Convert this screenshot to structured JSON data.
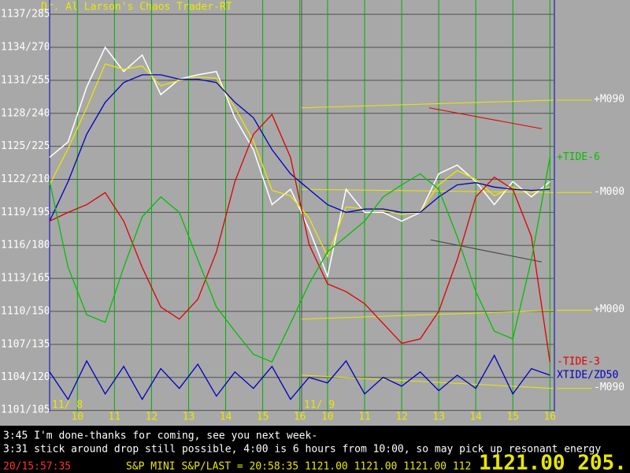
{
  "chart_data": {
    "type": "line",
    "title": "Dr. Al Larson's Chaos Trader-RT",
    "xlim": [
      0,
      13.6
    ],
    "ylim": [
      1100.9,
      1138.3
    ],
    "yticks": [
      {
        "value": 1101,
        "label": "1101/105"
      },
      {
        "value": 1104,
        "label": "1104/120"
      },
      {
        "value": 1107,
        "label": "1107/135"
      },
      {
        "value": 1110,
        "label": "1110/150"
      },
      {
        "value": 1113,
        "label": "1113/165"
      },
      {
        "value": 1116,
        "label": "1116/180"
      },
      {
        "value": 1119,
        "label": "1119/195"
      },
      {
        "value": 1122,
        "label": "1122/210"
      },
      {
        "value": 1125,
        "label": "1125/225"
      },
      {
        "value": 1128,
        "label": "1128/240"
      },
      {
        "value": 1131,
        "label": "1131/255"
      },
      {
        "value": 1134,
        "label": "1134/270"
      },
      {
        "value": 1137,
        "label": "1137/285"
      }
    ],
    "xticks": [
      {
        "value": 0.75,
        "label": "10"
      },
      {
        "value": 1.75,
        "label": "11"
      },
      {
        "value": 2.75,
        "label": "12"
      },
      {
        "value": 3.75,
        "label": "13"
      },
      {
        "value": 4.75,
        "label": "14"
      },
      {
        "value": 5.75,
        "label": "15"
      },
      {
        "value": 6.75,
        "label": "16"
      },
      {
        "value": 7.5,
        "label": "10"
      },
      {
        "value": 8.5,
        "label": "11"
      },
      {
        "value": 9.5,
        "label": "12"
      },
      {
        "value": 10.5,
        "label": "13"
      },
      {
        "value": 11.5,
        "label": "14"
      },
      {
        "value": 12.5,
        "label": "15"
      },
      {
        "value": 13.5,
        "label": "16"
      }
    ],
    "day_break": 6.8,
    "day_labels": [
      "11/ 8",
      "11/ 9"
    ],
    "x": [
      0,
      0.5,
      1,
      1.5,
      2,
      2.5,
      3,
      3.5,
      4,
      4.5,
      5,
      5.5,
      6,
      6.5,
      7,
      7.5,
      8,
      8.5,
      9,
      9.5,
      10,
      10.5,
      11,
      11.5,
      12,
      12.5,
      13,
      13.5
    ],
    "series": [
      {
        "color": "#ffffff",
        "values": [
          1124.0,
          1125.4,
          1130.4,
          1134.0,
          1131.8,
          1133.3,
          1129.7,
          1131.1,
          1131.5,
          1131.8,
          1127.6,
          1124.7,
          1119.7,
          1121.1,
          1117.5,
          1113.2,
          1121.1,
          1119.0,
          1119.0,
          1118.2,
          1119.0,
          1122.5,
          1123.3,
          1121.8,
          1119.7,
          1121.8,
          1120.4,
          1121.8
        ]
      },
      {
        "color": "#e8e800",
        "values": [
          1121.5,
          1124.8,
          1128.5,
          1132.5,
          1132.0,
          1132.3,
          1130.5,
          1131.0,
          1131.3,
          1131.2,
          1128.5,
          1125.5,
          1121.0,
          1120.5,
          1118.5,
          1115.0,
          1119.5,
          1119.3,
          1119.2,
          1118.8,
          1119.0,
          1121.5,
          1122.8,
          1122.0,
          1120.5,
          1121.3,
          1120.8,
          1121.3
        ]
      },
      {
        "color": "#0000c0",
        "values": [
          1118.2,
          1121.8,
          1126.1,
          1129.0,
          1130.8,
          1131.5,
          1131.5,
          1131.1,
          1131.1,
          1130.8,
          1129.0,
          1127.6,
          1124.7,
          1122.5,
          1121.1,
          1119.7,
          1119.0,
          1119.3,
          1119.3,
          1119.0,
          1119.0,
          1120.4,
          1121.5,
          1121.7,
          1121.3,
          1121.1,
          1121.0,
          1121.1
        ]
      },
      {
        "name": "-TIDE-3",
        "color": "#e00000",
        "values": [
          1118.2,
          1119.0,
          1119.7,
          1120.8,
          1118.2,
          1114.0,
          1110.4,
          1109.3,
          1111.1,
          1115.4,
          1121.8,
          1126.1,
          1127.9,
          1124.0,
          1116.1,
          1112.5,
          1111.8,
          1110.7,
          1108.9,
          1107.1,
          1107.5,
          1110.0,
          1114.7,
          1120.4,
          1122.2,
          1121.1,
          1116.8,
          1105.4
        ]
      },
      {
        "name": "+TIDE-6",
        "color": "#00c000",
        "values": [
          1121.8,
          1114.0,
          1109.7,
          1109.0,
          1114.0,
          1118.6,
          1120.4,
          1119.0,
          1114.7,
          1110.4,
          1108.2,
          1106.1,
          1105.4,
          1108.9,
          1112.5,
          1115.4,
          1116.8,
          1118.2,
          1120.4,
          1121.5,
          1122.5,
          1121.1,
          1116.8,
          1111.8,
          1108.2,
          1107.5,
          1114.7,
          1124.0
        ]
      },
      {
        "name": "XTIDE/ZD50",
        "color": "#0000c0",
        "values": [
          1104.5,
          1102.0,
          1105.5,
          1102.5,
          1105.0,
          1102.0,
          1104.8,
          1103.0,
          1105.2,
          1102.3,
          1104.5,
          1103.0,
          1105.0,
          1102.0,
          1104.0,
          1103.5,
          1105.5,
          1102.5,
          1104.0,
          1103.2,
          1104.5,
          1102.8,
          1104.2,
          1103.0,
          1106.0,
          1102.5,
          1104.8,
          1104.2
        ]
      }
    ],
    "levels": [
      {
        "name": "+M090",
        "color": "#e8e800",
        "x": [
          6.8,
          13.6
        ],
        "values": [
          1128.5,
          1129.2
        ]
      },
      {
        "name": "-M000",
        "color": "#e8e800",
        "x": [
          6.8,
          13.6
        ],
        "values": [
          1121.1,
          1120.8
        ]
      },
      {
        "name": "+M000",
        "color": "#e8e800",
        "x": [
          6.8,
          13.6
        ],
        "values": [
          1109.3,
          1110.1
        ]
      },
      {
        "name": "-M090",
        "color": "#e8e800",
        "x": [
          6.8,
          13.6
        ],
        "values": [
          1104.2,
          1103.0
        ]
      }
    ],
    "trend_lines": [
      {
        "color": "#e00000",
        "x": [
          10.24,
          13.28
        ],
        "values": [
          1128.5,
          1126.6
        ]
      },
      {
        "color": "#404040",
        "x": [
          10.28,
          13.28
        ],
        "values": [
          1116.5,
          1114.5
        ]
      }
    ]
  },
  "messages": [
    "3:45 I'm done-thanks for coming, see you next week-",
    "3:31 stick around drop still possible, 4:00 is 6 hours from 10:00, so may pick up resonant energy"
  ],
  "status": {
    "clock": "20/15:57:35",
    "quote": "S&P MINI S&P/LAST = 20:58:35 1121.00 1121.00 1121.00 112",
    "big": "1121.00 205."
  }
}
